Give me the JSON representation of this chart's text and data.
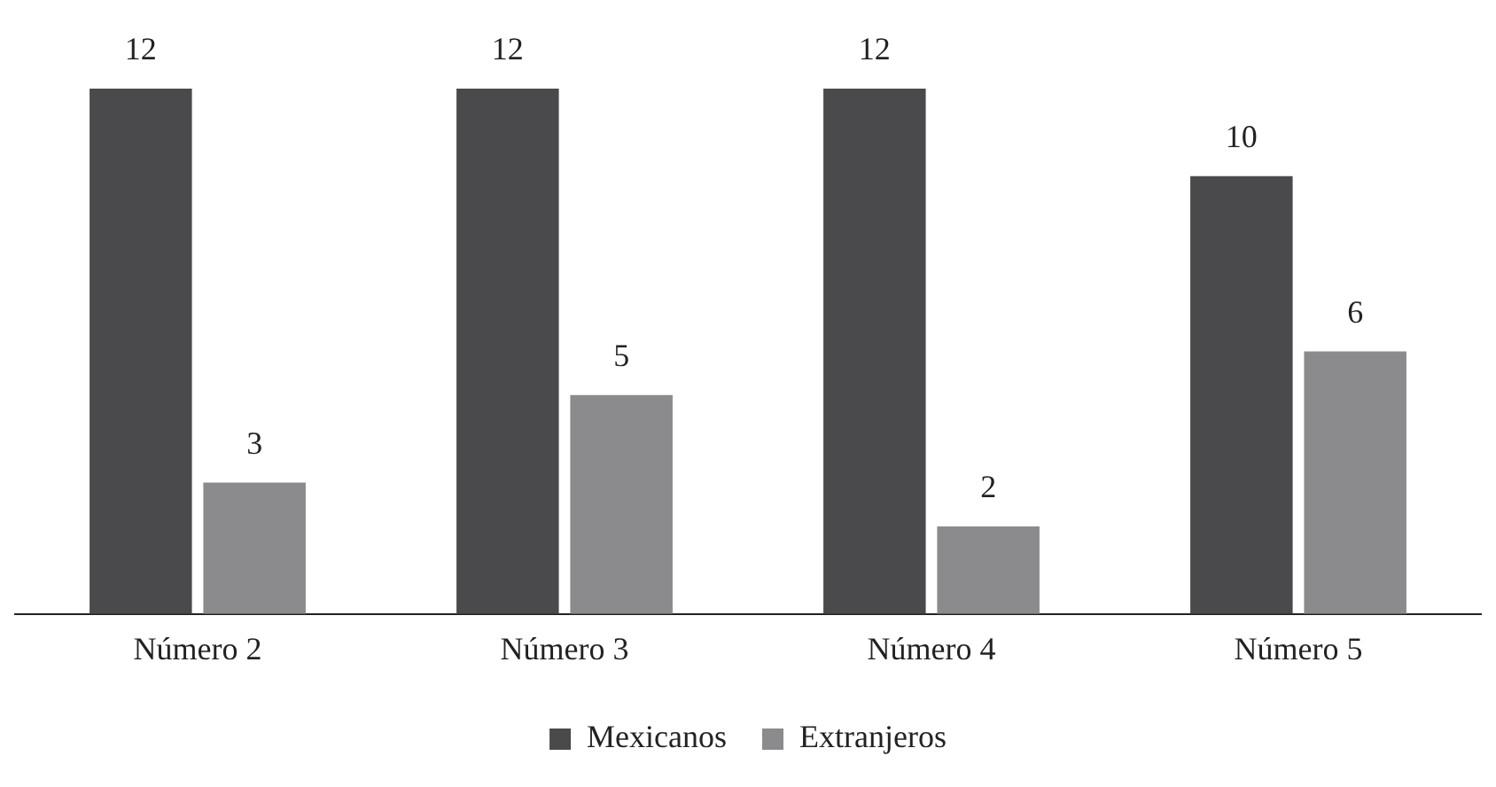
{
  "chart_data": {
    "type": "bar",
    "categories": [
      "Número 2",
      "Número 3",
      "Número 4",
      "Número 5"
    ],
    "series": [
      {
        "name": "Mexicanos",
        "color": "#4a4a4c",
        "values": [
          12,
          12,
          12,
          10
        ]
      },
      {
        "name": "Extranjeros",
        "color": "#8b8b8e",
        "values": [
          3,
          5,
          2,
          6
        ]
      }
    ],
    "ylim": [
      0,
      12
    ],
    "tick_labels": "x",
    "data_labels": true,
    "legend": "bottom",
    "grid": false
  }
}
